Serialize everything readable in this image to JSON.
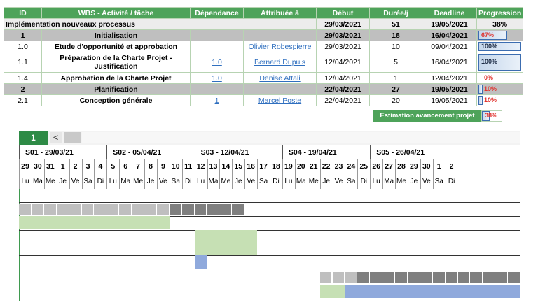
{
  "table": {
    "headers": [
      "ID",
      "WBS - Activité / tâche",
      "Dépendance",
      "Attribuée à",
      "Début",
      "Durée/j",
      "Deadline",
      "Progression"
    ],
    "project": {
      "name": "Implémentation nouveaux processus",
      "start": "29/03/2021",
      "duration": "51",
      "deadline": "19/05/2021",
      "progress": "38%"
    },
    "rows": [
      {
        "type": "phase",
        "id": "1",
        "name": "Initialisation",
        "dep": "",
        "assignee": "",
        "start": "29/03/2021",
        "duration": "18",
        "deadline": "16/04/2021",
        "progress_text": "67%",
        "progress_value": 0.67
      },
      {
        "type": "task",
        "id": "1.0",
        "name": "Etude d'opportunité et approbation",
        "dep": "",
        "assignee": "Olivier Robespierre",
        "start": "29/03/2021",
        "duration": "10",
        "deadline": "09/04/2021",
        "progress_text": "100%",
        "progress_value": 1.0
      },
      {
        "type": "task",
        "id": "1.1",
        "name": "Préparation de la Charte Projet - Justification",
        "dep": "1.0",
        "assignee": "Bernard Dupuis",
        "start": "12/04/2021",
        "duration": "5",
        "deadline": "16/04/2021",
        "progress_text": "100%",
        "progress_value": 1.0
      },
      {
        "type": "task",
        "id": "1.4",
        "name": "Approbation de la Charte Projet",
        "dep": "1.0",
        "assignee": "Denise Attali",
        "start": "12/04/2021",
        "duration": "1",
        "deadline": "12/04/2021",
        "progress_text": "0%",
        "progress_value": 0.0
      },
      {
        "type": "phase",
        "id": "2",
        "name": "Planification",
        "dep": "",
        "assignee": "",
        "start": "22/04/2021",
        "duration": "27",
        "deadline": "19/05/2021",
        "progress_text": "10%",
        "progress_value": 0.1
      },
      {
        "type": "task",
        "id": "2.1",
        "name": "Conception générale",
        "dep": "1",
        "assignee": "Marcel Poste",
        "start": "22/04/2021",
        "duration": "20",
        "deadline": "19/05/2021",
        "progress_text": "10%",
        "progress_value": 0.1
      }
    ],
    "summary": {
      "label": "Estimation avancement projet",
      "progress_text": "38%",
      "progress_value": 0.38
    }
  },
  "gantt": {
    "tab_label": "1",
    "prev_glyph": "<",
    "weeks": [
      "S01 - 29/03/21",
      "S02 - 05/04/21",
      "S03 - 12/04/21",
      "S04 - 19/04/21",
      "S05 - 26/04/21"
    ],
    "day_numbers": [
      "29",
      "30",
      "31",
      "1",
      "2",
      "3",
      "4",
      "5",
      "6",
      "7",
      "8",
      "9",
      "10",
      "11",
      "12",
      "13",
      "14",
      "15",
      "16",
      "17",
      "18",
      "19",
      "20",
      "21",
      "22",
      "23",
      "24",
      "25",
      "26",
      "27",
      "28",
      "29",
      "30",
      "1",
      "2"
    ],
    "day_names": [
      "Lu",
      "Ma",
      "Me",
      "Je",
      "Ve",
      "Sa",
      "Di",
      "Lu",
      "Ma",
      "Me",
      "Je",
      "Ve",
      "Sa",
      "Di",
      "Lu",
      "Ma",
      "Me",
      "Je",
      "Ve",
      "Sa",
      "Di",
      "Lu",
      "Ma",
      "Me",
      "Je",
      "Ve",
      "Sa",
      "Di",
      "Lu",
      "Ma",
      "Me",
      "Je",
      "Ve",
      "Sa",
      "Di"
    ],
    "colors": {
      "phase_done": "#bfbfbf",
      "phase_remaining": "#7f7f7f",
      "task_planned": "#c6e0b4",
      "task_progress": "#8fa9dc"
    }
  }
}
